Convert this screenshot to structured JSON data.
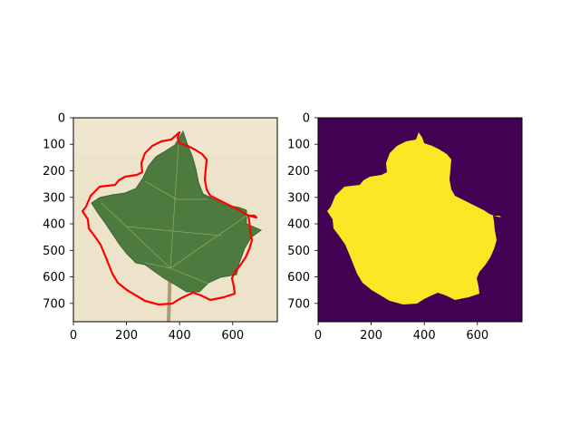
{
  "figure": {
    "panels": [
      {
        "id": "left",
        "content": "leaf-photo-with-red-contour",
        "xticks": [
          "0",
          "200",
          "400",
          "600"
        ],
        "yticks": [
          "0",
          "100",
          "200",
          "300",
          "400",
          "500",
          "600",
          "700"
        ],
        "contour_color": "#ff0000"
      },
      {
        "id": "right",
        "content": "binary-mask",
        "xticks": [
          "0",
          "200",
          "400",
          "600"
        ],
        "yticks": [
          "0",
          "100",
          "200",
          "300",
          "400",
          "500",
          "600",
          "700"
        ],
        "colors": {
          "background": "#440154",
          "foreground": "#fde725"
        }
      }
    ]
  }
}
